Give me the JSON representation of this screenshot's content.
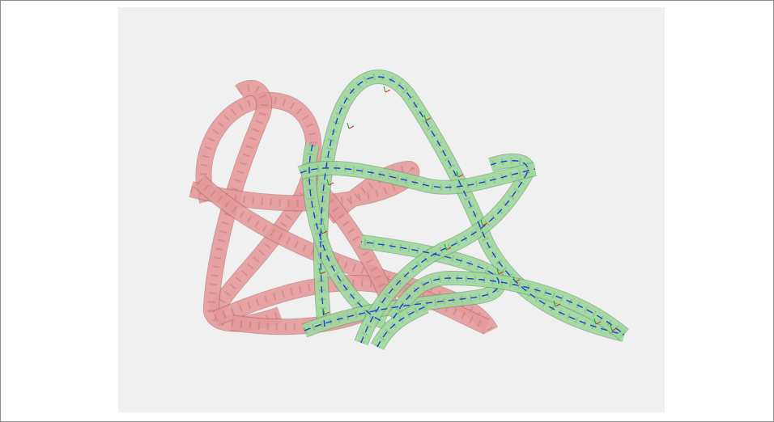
{
  "viewer": {
    "background_color": "#f0f0f0",
    "caption": ""
  },
  "scene": {
    "objects": [
      {
        "name": "red-swept-ribbon",
        "fill_color": "#f4a6a6",
        "stroke_color": "#b06a6a"
      },
      {
        "name": "green-swept-tube",
        "fill_color": "#a9e6a9",
        "stroke_color": "#6f9a6f",
        "centerline_color": "#1f3bd6"
      }
    ],
    "frame_axis_colors": {
      "x": "#e03030",
      "y": "#20b020",
      "z": "#1f3bd6"
    }
  }
}
